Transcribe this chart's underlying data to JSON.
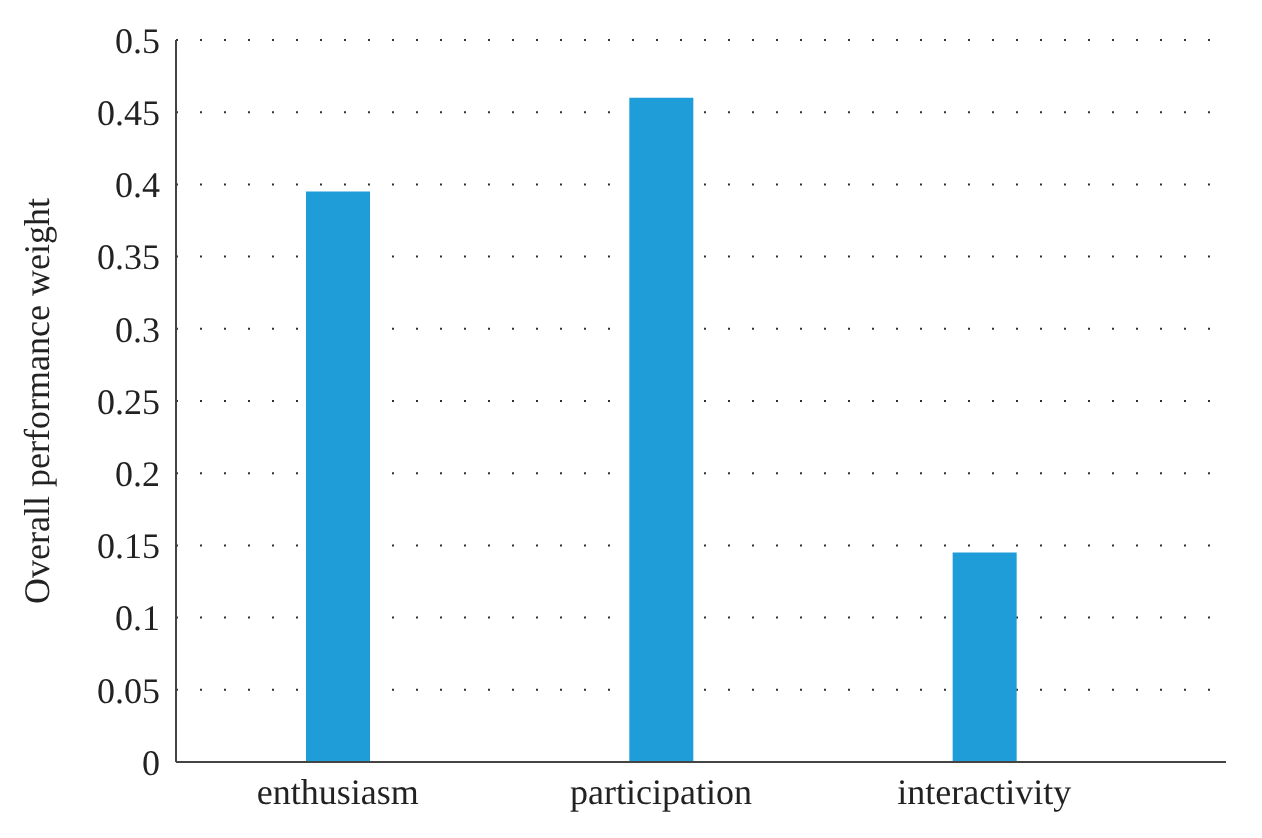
{
  "chart_data": {
    "type": "bar",
    "ylabel": "Overall performance weight",
    "categories": [
      "enthusiasm",
      "participation",
      "interactivity"
    ],
    "values": [
      0.395,
      0.46,
      0.145
    ],
    "color": "#1f9dd9",
    "ylim": [
      0,
      0.5
    ],
    "yticks": [
      0,
      0.05,
      0.1,
      0.15,
      0.2,
      0.25,
      0.3,
      0.35,
      0.4,
      0.45,
      0.5
    ],
    "grid": "y"
  }
}
